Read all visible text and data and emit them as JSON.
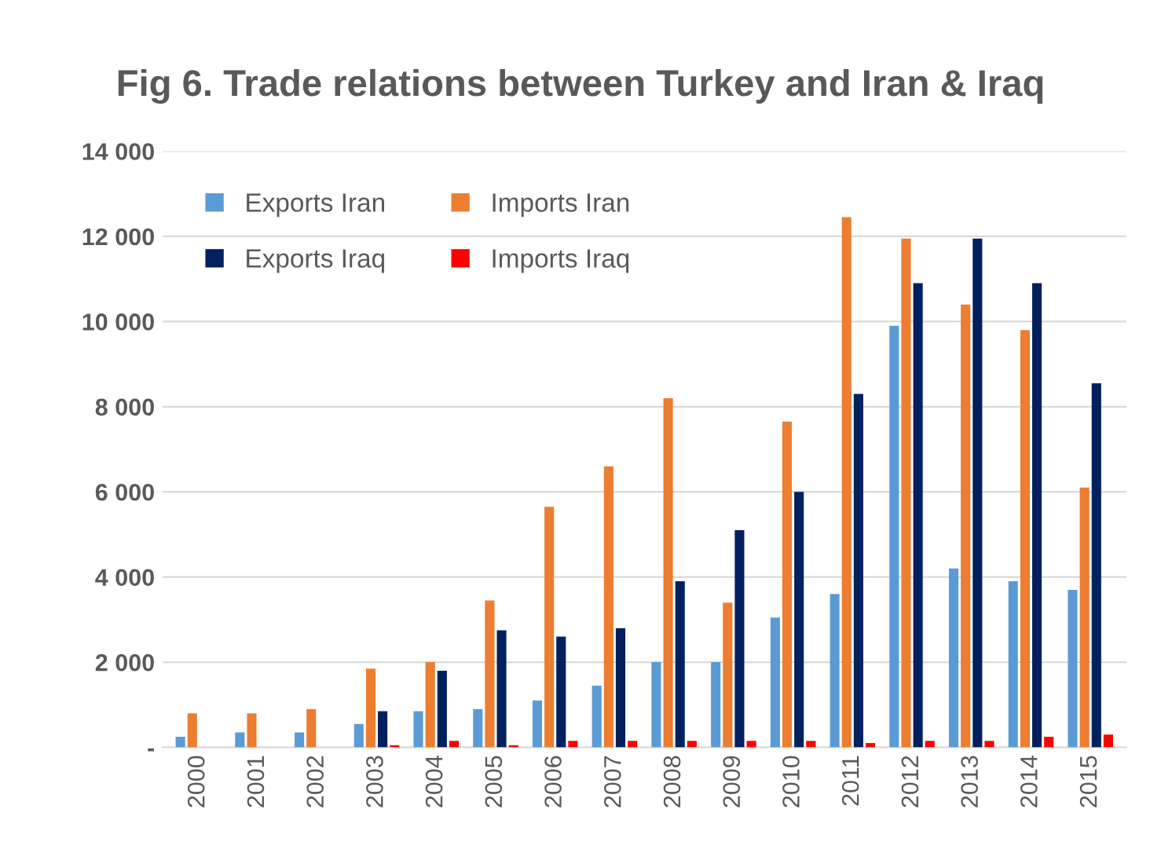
{
  "chart_data": {
    "type": "bar",
    "title": "Fig 6. Trade relations between Turkey and Iran & Iraq",
    "categories": [
      "2000",
      "2001",
      "2002",
      "2003",
      "2004",
      "2005",
      "2006",
      "2007",
      "2008",
      "2009",
      "2010",
      "2011",
      "2012",
      "2013",
      "2014",
      "2015"
    ],
    "series": [
      {
        "name": "Exports Iran",
        "color": "#5b9bd5",
        "values": [
          250,
          350,
          350,
          550,
          850,
          900,
          1100,
          1450,
          2000,
          2000,
          3050,
          3600,
          9900,
          4200,
          3900,
          3700
        ]
      },
      {
        "name": "Imports Iran",
        "color": "#ed7d31",
        "values": [
          800,
          800,
          900,
          1850,
          2000,
          3450,
          5650,
          6600,
          8200,
          3400,
          7650,
          12450,
          11950,
          10400,
          9800,
          6100
        ]
      },
      {
        "name": "Exports Iraq",
        "color": "#002060",
        "values": [
          null,
          null,
          null,
          850,
          1800,
          2750,
          2600,
          2800,
          3900,
          5100,
          6000,
          8300,
          10900,
          11950,
          10900,
          8550
        ]
      },
      {
        "name": "Imports Iraq",
        "color": "#ff0000",
        "values": [
          null,
          null,
          null,
          50,
          150,
          50,
          150,
          150,
          150,
          150,
          150,
          100,
          150,
          150,
          250,
          300
        ]
      }
    ],
    "ylim": [
      0,
      14000
    ],
    "yticks": [
      {
        "value": 0,
        "label": "-"
      },
      {
        "value": 2000,
        "label": "2 000"
      },
      {
        "value": 4000,
        "label": "4 000"
      },
      {
        "value": 6000,
        "label": "6 000"
      },
      {
        "value": 8000,
        "label": "8 000"
      },
      {
        "value": 10000,
        "label": "10 000"
      },
      {
        "value": 12000,
        "label": "12 000"
      },
      {
        "value": 14000,
        "label": "14 000"
      }
    ],
    "grid": "y",
    "legend": "top left"
  }
}
